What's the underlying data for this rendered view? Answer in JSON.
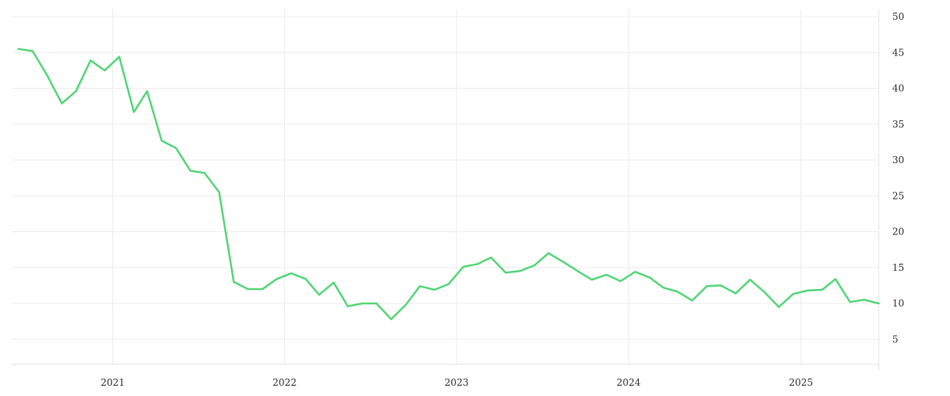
{
  "chart_data": {
    "type": "line",
    "title": "",
    "xlabel": "",
    "ylabel": "",
    "x_axis_type": "date",
    "x_ticks": [
      "2021",
      "2022",
      "2023",
      "2024",
      "2025"
    ],
    "y_ticks": [
      5,
      10,
      15,
      20,
      25,
      30,
      35,
      40,
      45,
      50
    ],
    "ylim": [
      1.5,
      51
    ],
    "xlim": [
      "2020-06-01",
      "2025-06-15"
    ],
    "y_axis_position": "right",
    "grid": true,
    "legend": "none",
    "series": [
      {
        "color": "#57d67a",
        "x": [
          "2020-06-15",
          "2020-07-15",
          "2020-08-15",
          "2020-09-15",
          "2020-10-15",
          "2020-11-15",
          "2020-12-15",
          "2021-01-15",
          "2021-02-15",
          "2021-03-15",
          "2021-04-15",
          "2021-05-15",
          "2021-06-15",
          "2021-07-15",
          "2021-08-15",
          "2021-09-15",
          "2021-10-15",
          "2021-11-15",
          "2021-12-15",
          "2022-01-15",
          "2022-02-15",
          "2022-03-15",
          "2022-04-15",
          "2022-05-15",
          "2022-06-15",
          "2022-07-15",
          "2022-08-15",
          "2022-09-15",
          "2022-10-15",
          "2022-11-15",
          "2022-12-15",
          "2023-01-15",
          "2023-02-15",
          "2023-03-15",
          "2023-04-15",
          "2023-05-15",
          "2023-06-15",
          "2023-07-15",
          "2023-08-15",
          "2023-09-15",
          "2023-10-15",
          "2023-11-15",
          "2023-12-15",
          "2024-01-15",
          "2024-02-15",
          "2024-03-15",
          "2024-04-15",
          "2024-05-15",
          "2024-06-15",
          "2024-07-15",
          "2024-08-15",
          "2024-09-15",
          "2024-10-15",
          "2024-11-15",
          "2024-12-15",
          "2025-01-15",
          "2025-02-15",
          "2025-03-15",
          "2025-04-15",
          "2025-05-15",
          "2025-06-15"
        ],
        "values": [
          45.5,
          45.2,
          41.8,
          37.9,
          39.6,
          43.9,
          42.5,
          44.4,
          36.7,
          39.6,
          32.7,
          31.7,
          28.5,
          28.2,
          25.5,
          13.0,
          12.0,
          12.0,
          13.4,
          14.2,
          13.4,
          11.2,
          12.9,
          9.6,
          10.0,
          10.0,
          7.8,
          9.8,
          12.4,
          11.9,
          12.7,
          15.1,
          15.5,
          16.4,
          14.3,
          14.5,
          15.3,
          17.0,
          15.8,
          14.5,
          13.3,
          14.0,
          13.1,
          14.4,
          13.6,
          12.2,
          11.6,
          10.4,
          12.4,
          12.5,
          11.4,
          13.3,
          11.6,
          9.5,
          11.3,
          11.8,
          11.9,
          13.4,
          10.2,
          10.5,
          10.0
        ]
      }
    ]
  }
}
